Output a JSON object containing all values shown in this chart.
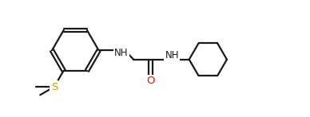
{
  "bg_color": "#ffffff",
  "line_color": "#1a1a1a",
  "bond_width": 1.6,
  "S_color": "#c8a000",
  "O_color": "#cc2200",
  "font_size": 8.5,
  "figsize": [
    3.88,
    1.47
  ],
  "dpi": 100,
  "xlim": [
    0,
    9.5
  ],
  "ylim": [
    0,
    3.5
  ]
}
